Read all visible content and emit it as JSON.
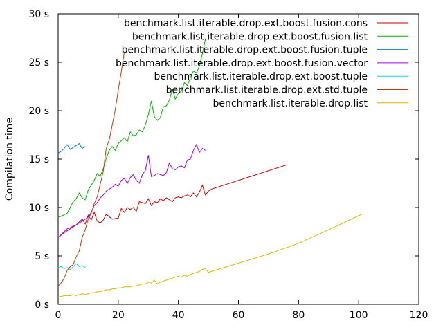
{
  "chart_data": {
    "type": "line",
    "ylabel": "Compilation time",
    "xlim": [
      0,
      120
    ],
    "ylim": [
      0,
      30
    ],
    "x_ticks": [
      "0",
      "20",
      "40",
      "60",
      "80",
      "100",
      "120"
    ],
    "y_ticks": [
      "0 s",
      "5 s",
      "10 s",
      "15 s",
      "20 s",
      "25 s",
      "30 s"
    ],
    "grid": false,
    "legend_position": "top-right",
    "series": [
      {
        "name": "benchmark.list.iterable.drop.ext.boost.fusion.cons",
        "color": "#cc0000",
        "x": [
          0,
          2,
          4,
          5,
          6,
          7,
          8,
          9,
          10,
          11,
          12,
          13,
          14,
          15,
          16,
          18,
          20,
          21,
          22,
          23,
          24,
          25,
          26,
          27,
          28,
          29,
          30,
          31,
          32,
          33,
          34,
          35,
          36,
          37,
          38,
          39,
          40,
          41,
          42,
          43,
          44,
          45,
          46,
          47,
          48,
          49,
          50,
          51,
          76
        ],
        "y": [
          6.9,
          7.4,
          7.8,
          8.0,
          8.2,
          8.5,
          8.8,
          8.3,
          9.2,
          8.7,
          9.5,
          8.6,
          8.4,
          8.7,
          9.3,
          8.8,
          8.9,
          9.9,
          9.5,
          10.0,
          9.8,
          10.0,
          9.6,
          10.6,
          10.5,
          10.4,
          10.9,
          10.2,
          10.6,
          10.5,
          10.9,
          10.7,
          11.0,
          10.8,
          10.6,
          11.0,
          11.1,
          11.0,
          11.2,
          11.3,
          11.1,
          11.5,
          11.1,
          11.6,
          12.3,
          11.3,
          11.7,
          11.9,
          14.4
        ]
      },
      {
        "name": "benchmark.list.iterable.drop.ext.boost.fusion.list",
        "color": "#00b000",
        "x": [
          0,
          1,
          3,
          4,
          5,
          6,
          7,
          8,
          9,
          10,
          11,
          12,
          13,
          14,
          15,
          16,
          17,
          18,
          19,
          20,
          21,
          22,
          23,
          24,
          25,
          26,
          27,
          28,
          29,
          30,
          31,
          32,
          33,
          34,
          35,
          36,
          37,
          38,
          39,
          40,
          41,
          42,
          43,
          44,
          45,
          46,
          47,
          48,
          49
        ],
        "y": [
          9.0,
          9.1,
          9.4,
          10.0,
          10.6,
          10.9,
          11.5,
          11.0,
          10.8,
          11.8,
          12.3,
          12.8,
          13.5,
          13.2,
          14.0,
          15.1,
          15.9,
          16.3,
          15.9,
          16.6,
          16.9,
          17.2,
          16.8,
          17.8,
          17.4,
          17.5,
          18.0,
          17.8,
          18.5,
          19.6,
          21.0,
          19.4,
          19.0,
          19.3,
          20.4,
          20.5,
          21.1,
          22.2,
          21.2,
          21.8,
          22.0,
          22.9,
          22.6,
          23.4,
          24.1,
          23.9,
          24.6,
          25.9,
          27.4
        ]
      },
      {
        "name": "benchmark.list.iterable.drop.ext.boost.fusion.tuple",
        "color": "#0080c0",
        "x": [
          0,
          1,
          2,
          3,
          4,
          5,
          6,
          7,
          8,
          9
        ],
        "y": [
          15.6,
          15.8,
          16.1,
          16.5,
          16.0,
          16.2,
          16.4,
          16.6,
          16.1,
          16.3
        ]
      },
      {
        "name": "benchmark.list.iterable.drop.ext.boost.fusion.vector",
        "color": "#a000e0",
        "x": [
          0,
          1,
          2,
          3,
          4,
          5,
          6,
          7,
          8,
          9,
          10,
          11,
          12,
          13,
          14,
          15,
          16,
          17,
          18,
          19,
          20,
          21,
          22,
          23,
          24,
          25,
          26,
          27,
          28,
          29,
          30,
          31,
          32,
          33,
          34,
          35,
          36,
          37,
          38,
          39,
          40,
          41,
          42,
          43,
          44,
          45,
          46,
          47,
          48,
          49
        ],
        "y": [
          6.9,
          7.2,
          7.5,
          7.8,
          7.9,
          8.1,
          8.2,
          8.4,
          8.6,
          8.8,
          9.0,
          9.5,
          10.2,
          10.5,
          11.0,
          11.3,
          11.7,
          11.9,
          12.1,
          12.4,
          12.2,
          12.8,
          13.0,
          12.5,
          13.1,
          13.4,
          12.8,
          12.5,
          13.4,
          13.8,
          15.4,
          13.2,
          13.3,
          13.5,
          13.4,
          13.3,
          13.6,
          14.6,
          14.0,
          13.9,
          14.2,
          14.3,
          14.1,
          14.9,
          15.0,
          15.9,
          16.5,
          15.7,
          16.1,
          15.9
        ]
      },
      {
        "name": "benchmark.list.iterable.drop.ext.boost.tuple",
        "color": "#00d8e8",
        "x": [
          0,
          1,
          2,
          3,
          4,
          5,
          6,
          7,
          8,
          9
        ],
        "y": [
          3.8,
          3.9,
          3.7,
          3.8,
          3.6,
          3.9,
          4.2,
          3.9,
          4.0,
          3.8
        ]
      },
      {
        "name": "benchmark.list.iterable.drop.ext.std.tuple",
        "color": "#b84010",
        "x": [
          0,
          1,
          2,
          3,
          4,
          5,
          6,
          7,
          8,
          9,
          10,
          11,
          12,
          13,
          14,
          15,
          16,
          17,
          18,
          19,
          20,
          21,
          22
        ],
        "y": [
          1.9,
          2.2,
          2.7,
          3.5,
          3.9,
          4.1,
          4.9,
          5.5,
          6.9,
          7.7,
          8.8,
          9.4,
          10.4,
          11.1,
          12.4,
          13.7,
          16.1,
          17.0,
          18.5,
          20.1,
          22.1,
          24.0,
          26.0
        ]
      },
      {
        "name": "benchmark.list.iterable.drop.list",
        "color": "#d8b800",
        "x": [
          0,
          1,
          2,
          3,
          4,
          5,
          6,
          7,
          8,
          9,
          10,
          11,
          12,
          13,
          14,
          15,
          16,
          17,
          18,
          19,
          20,
          21,
          22,
          23,
          24,
          25,
          26,
          27,
          28,
          29,
          30,
          31,
          32,
          33,
          34,
          35,
          36,
          37,
          38,
          39,
          40,
          41,
          42,
          43,
          44,
          45,
          46,
          47,
          48,
          49,
          50,
          51,
          70,
          80,
          90,
          101
        ],
        "y": [
          0.8,
          0.8,
          0.9,
          0.9,
          0.9,
          1.0,
          0.9,
          1.0,
          1.1,
          1.0,
          1.1,
          1.2,
          1.2,
          1.3,
          1.3,
          1.4,
          1.5,
          1.5,
          1.6,
          1.6,
          1.7,
          1.7,
          1.8,
          1.8,
          1.8,
          1.9,
          1.9,
          2.0,
          2.1,
          2.1,
          2.3,
          2.2,
          2.5,
          2.1,
          2.3,
          2.4,
          2.5,
          2.6,
          2.7,
          2.8,
          2.9,
          2.8,
          3.0,
          2.9,
          3.1,
          3.2,
          3.3,
          3.4,
          3.6,
          3.7,
          3.3,
          3.4,
          5.2,
          6.3,
          7.7,
          9.3
        ]
      }
    ]
  }
}
